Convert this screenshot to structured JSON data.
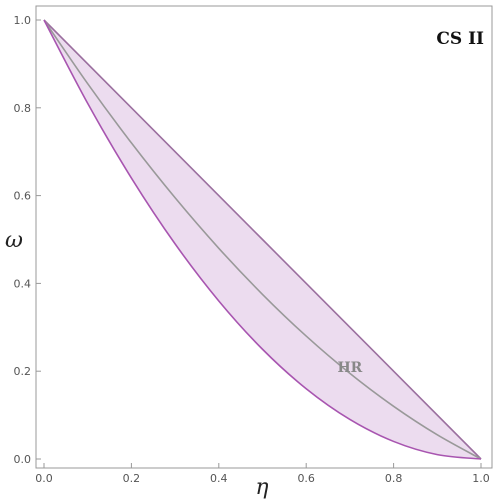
{
  "chart_data": {
    "type": "area",
    "title": "CS II",
    "xlabel": "η",
    "ylabel": "ω",
    "xlim": [
      0,
      1
    ],
    "ylim": [
      0,
      1
    ],
    "xticks": [
      "0.0",
      "0.2",
      "0.4",
      "0.6",
      "0.8",
      "1.0"
    ],
    "yticks": [
      "0.0",
      "0.2",
      "0.4",
      "0.6",
      "0.8",
      "1.0"
    ],
    "grid": false,
    "series": [
      {
        "role": "upper-bound",
        "color": "#9b6f9f",
        "x": [
          0,
          1
        ],
        "y": [
          1,
          0
        ]
      },
      {
        "role": "middle-curve",
        "color": "#999999",
        "x": [
          0,
          0.1,
          0.2,
          0.3,
          0.4,
          0.5,
          0.6,
          0.7,
          0.8,
          0.9,
          1
        ],
        "y": [
          1,
          0.855,
          0.72,
          0.595,
          0.48,
          0.375,
          0.28,
          0.195,
          0.12,
          0.055,
          0
        ]
      },
      {
        "role": "lower-bound",
        "color": "#a855b0",
        "x": [
          0,
          0.1,
          0.2,
          0.3,
          0.4,
          0.5,
          0.6,
          0.7,
          0.8,
          0.9,
          1
        ],
        "y": [
          1,
          0.81,
          0.64,
          0.49,
          0.36,
          0.25,
          0.16,
          0.09,
          0.04,
          0.01,
          0
        ]
      }
    ],
    "fill_color": "#ecdcef",
    "annotations": [
      {
        "text": "HR",
        "x": 0.7,
        "y": 0.21,
        "color": "#888888"
      }
    ]
  }
}
